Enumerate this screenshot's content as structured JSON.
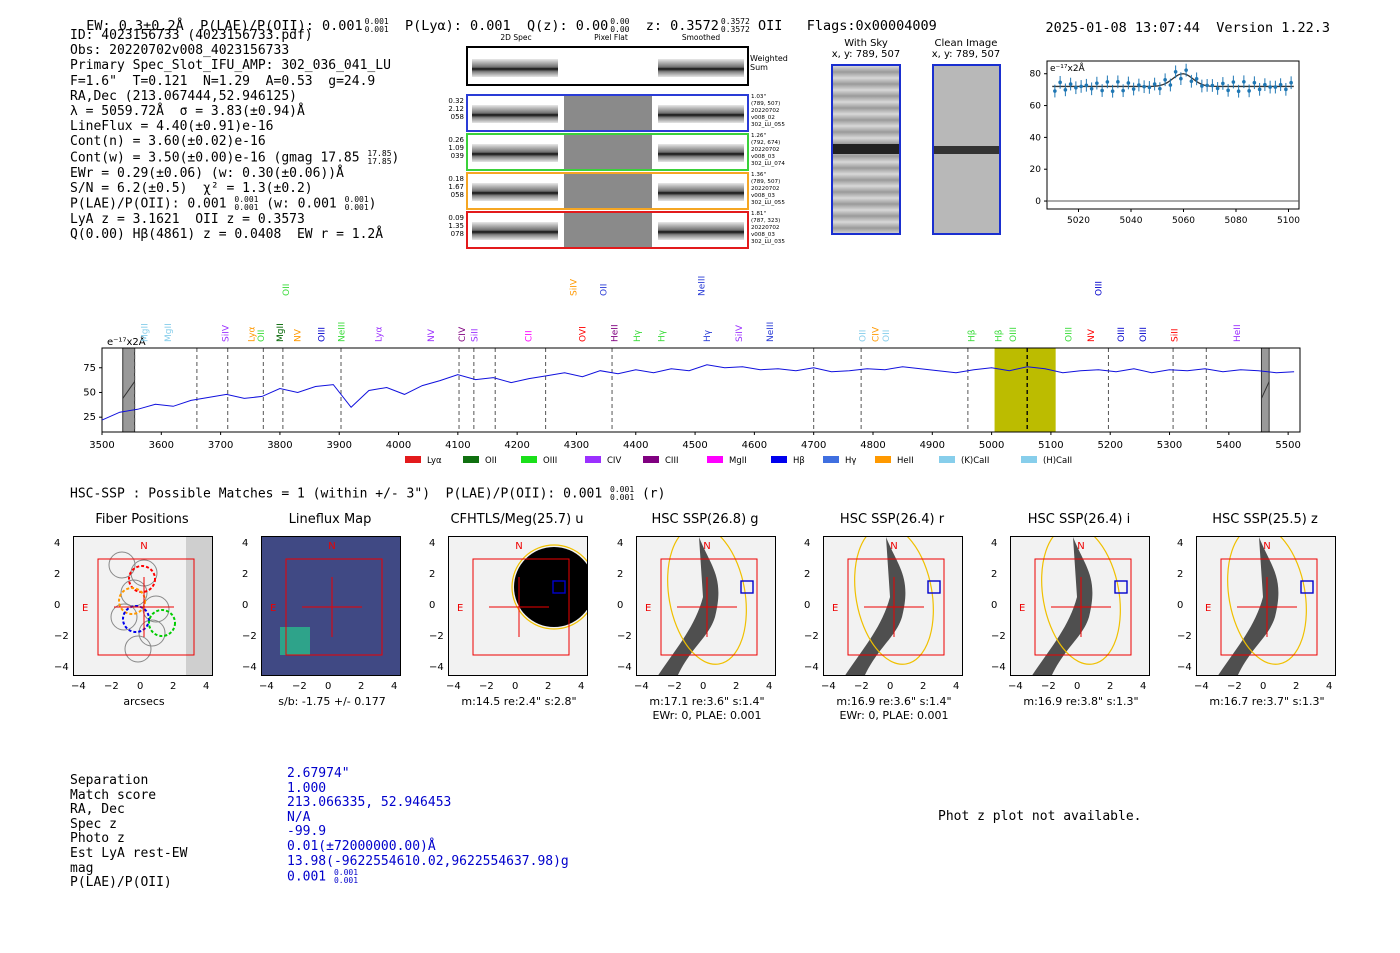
{
  "header": {
    "ew": "EW: 0.3±0.2Å",
    "plae_label": "P(LAE)/P(OII): 0.001",
    "plae_hi": "0.001",
    "plae_lo": "0.001",
    "plya": "P(Lyα): 0.001",
    "qz_label": "Q(z): 0.00",
    "qz_hi": "0.00",
    "qz_lo": "0.00",
    "z_label": "z: 0.3572",
    "z_hi": "0.3572",
    "z_lo": "0.3572",
    "z_line": "OII",
    "flags": "Flags:0x00004009",
    "timestamp": "2025-01-08 13:07:44",
    "version": "Version 1.22.3"
  },
  "info": {
    "id": "ID: 4023156733 (4023156733.pdf)",
    "obs": "Obs: 20220702v008_4023156733",
    "primary": "Primary Spec_Slot_IFU_AMP: 302_036_041_LU",
    "fwhm": "F=1.6\"  T=0.121  N=1.29  A=0.53  g=24.9",
    "radec": "RA,Dec (213.067444,52.946125)",
    "lambda": "λ = 5059.72Å  σ = 3.83(±0.94)Å",
    "lineflux": "LineFlux = 4.40(±0.91)e-16",
    "contn": "Cont(n) = 3.60(±0.02)e-16",
    "contw": "Cont(w) = 3.50(±0.00)e-16 (gmag 17.85",
    "contw_hi": "17.85",
    "contw_lo": "17.85",
    "ewr": "EWr = 0.29(±0.06) (w: 0.30(±0.06))Å",
    "sn": "S/N = 6.2(±0.5)  χ² = 1.3(±0.2)",
    "plae": "P(LAE)/P(OII): 0.001",
    "plae_hi": "0.001",
    "plae_lo": "0.001",
    "plae_w": "(w: 0.001",
    "plae_w_hi": "0.001",
    "plae_w_lo": "0.001",
    "lya": "LyA z = 3.1621  OII z = 0.3573",
    "hbeta": "Q(0.00) Hβ(4861) z = 0.0408  EW r = 1.2Å"
  },
  "cutouts": {
    "col_titles": [
      "2D Spec",
      "Pixel Flat",
      "Smoothed"
    ],
    "weighted_sum": "Weighted Sum",
    "rows": [
      {
        "left": [
          "0.32",
          "2.12",
          "058"
        ],
        "right": [
          "1.03\"",
          "(789, 507)",
          "20220702",
          "v008_02",
          "302_LU_055"
        ],
        "color": "#2a3cd6"
      },
      {
        "left": [
          "0.26",
          "1.09",
          "039"
        ],
        "right": [
          "1.26\"",
          "(792, 674)",
          "20220702",
          "v008_03",
          "302_LU_074"
        ],
        "color": "#3ad13a"
      },
      {
        "left": [
          "0.18",
          "1.67",
          "058"
        ],
        "right": [
          "1.36\"",
          "(789, 507)",
          "20220702",
          "v008_03",
          "302_LU_055"
        ],
        "color": "#f5a623"
      },
      {
        "left": [
          "0.09",
          "1.35",
          "078"
        ],
        "right": [
          "1.81\"",
          "(787, 323)",
          "20220702",
          "v008_03",
          "302_LU_035"
        ],
        "color": "#e31a1c"
      }
    ],
    "with_sky": "With Sky",
    "with_sky_xy": "x, y: 789, 507",
    "clean": "Clean Image",
    "clean_xy": "x, y: 789, 507"
  },
  "zoom_plot": {
    "unit_label": "e⁻¹⁷x2Å",
    "xticks": [
      "5020",
      "5040",
      "5060",
      "5080",
      "5100"
    ],
    "yticks": [
      "0",
      "20",
      "40",
      "60",
      "80"
    ]
  },
  "chart_data": {
    "type": "line",
    "title": "",
    "ylabel": "e⁻¹⁷x2Å",
    "xlim": [
      3500,
      5520
    ],
    "ylim": [
      10,
      95
    ],
    "xticks": [
      3500,
      3600,
      3700,
      3800,
      3900,
      4000,
      4100,
      4200,
      4300,
      4400,
      4500,
      4600,
      4700,
      4800,
      4900,
      5000,
      5100,
      5200,
      5300,
      5400,
      5500
    ],
    "yticks": [
      25,
      50,
      75
    ],
    "x": [
      3500,
      3530,
      3560,
      3590,
      3620,
      3650,
      3680,
      3710,
      3740,
      3770,
      3800,
      3830,
      3860,
      3890,
      3920,
      3950,
      3980,
      4010,
      4040,
      4070,
      4100,
      4130,
      4160,
      4190,
      4220,
      4250,
      4280,
      4310,
      4340,
      4370,
      4400,
      4430,
      4460,
      4490,
      4520,
      4550,
      4580,
      4610,
      4640,
      4670,
      4700,
      4730,
      4760,
      4790,
      4820,
      4850,
      4880,
      4910,
      4940,
      4970,
      5000,
      5030,
      5060,
      5090,
      5120,
      5150,
      5180,
      5210,
      5240,
      5270,
      5300,
      5330,
      5360,
      5390,
      5420,
      5450,
      5480,
      5510
    ],
    "values": [
      22,
      30,
      33,
      38,
      36,
      42,
      45,
      48,
      44,
      46,
      54,
      50,
      56,
      58,
      35,
      52,
      55,
      48,
      57,
      62,
      68,
      63,
      65,
      60,
      64,
      67,
      70,
      66,
      72,
      69,
      73,
      70,
      74,
      72,
      78,
      75,
      76,
      73,
      74,
      72,
      75,
      71,
      72,
      74,
      73,
      76,
      74,
      72,
      70,
      73,
      75,
      72,
      76,
      74,
      70,
      72,
      73,
      71,
      74,
      70,
      73,
      72,
      74,
      71,
      73,
      72,
      70,
      71
    ],
    "highlight_range": [
      5005,
      5108
    ],
    "masked_ranges": [
      [
        3535,
        3555
      ],
      [
        5455,
        5468
      ]
    ],
    "dashed_lines": [
      3555,
      3660,
      3712,
      3772,
      3805,
      3903,
      4102,
      4127,
      4163,
      4248,
      4360,
      4700,
      4780,
      4960,
      5060,
      5197,
      5306,
      5362
    ],
    "lines": [
      {
        "name": "MgII",
        "x": 3572,
        "color": "#87ceeb"
      },
      {
        "name": "MgII",
        "x": 3611,
        "color": "#87ceeb"
      },
      {
        "name": "SiIV",
        "x": 3708,
        "color": "#9b30ff"
      },
      {
        "name": "Lyα",
        "x": 3752,
        "color": "#ff9900"
      },
      {
        "name": "OII",
        "x": 3768,
        "color": "#3bdc3b"
      },
      {
        "name": "MgII",
        "x": 3800,
        "color": "#006400"
      },
      {
        "name": "NV",
        "x": 3830,
        "color": "#ff9900"
      },
      {
        "name": "OIII",
        "x": 3870,
        "color": "#0000cc"
      },
      {
        "name": "NeIII",
        "x": 3904,
        "color": "#3bdc3b"
      },
      {
        "name": "Lyα",
        "x": 3966,
        "color": "#9b30ff"
      },
      {
        "name": "NV",
        "x": 4055,
        "color": "#9b30ff"
      },
      {
        "name": "CIV",
        "x": 4107,
        "color": "#800080"
      },
      {
        "name": "SiII",
        "x": 4128,
        "color": "#9b30ff"
      },
      {
        "name": "CII",
        "x": 4219,
        "color": "#ff00ff"
      },
      {
        "name": "OVI",
        "x": 4310,
        "color": "#ff0000"
      },
      {
        "name": "HeII",
        "x": 4364,
        "color": "#800080"
      },
      {
        "name": "Hγ",
        "x": 4402,
        "color": "#3bdc3b"
      },
      {
        "name": "Hγ",
        "x": 4443,
        "color": "#3bdc3b"
      },
      {
        "name": "Hγ",
        "x": 4520,
        "color": "#2a3cd6"
      },
      {
        "name": "SiIV",
        "x": 4574,
        "color": "#9b30ff"
      },
      {
        "name": "NeIII",
        "x": 4626,
        "color": "#2a3cd6"
      },
      {
        "name": "OII",
        "x": 4782,
        "color": "#87ceeb"
      },
      {
        "name": "CIV",
        "x": 4804,
        "color": "#ff9900"
      },
      {
        "name": "OII",
        "x": 4822,
        "color": "#87ceeb"
      },
      {
        "name": "Hβ",
        "x": 4966,
        "color": "#3bdc3b"
      },
      {
        "name": "Hβ",
        "x": 5012,
        "color": "#3bdc3b"
      },
      {
        "name": "OIII",
        "x": 5036,
        "color": "#3bdc3b"
      },
      {
        "name": "OIII",
        "x": 5130,
        "color": "#3bdc3b"
      },
      {
        "name": "NV",
        "x": 5168,
        "color": "#ff0000"
      },
      {
        "name": "OIII",
        "x": 5218,
        "color": "#0000cc"
      },
      {
        "name": "OIII",
        "x": 5255,
        "color": "#0000cc"
      },
      {
        "name": "SiII",
        "x": 5308,
        "color": "#ff0000"
      },
      {
        "name": "HeII",
        "x": 5414,
        "color": "#9b30ff"
      }
    ],
    "top_lines": [
      {
        "name": "OII",
        "x": 3810,
        "color": "#3bdc3b"
      },
      {
        "name": "SiIV",
        "x": 4295,
        "color": "#ff9900"
      },
      {
        "name": "OII",
        "x": 4346,
        "color": "#2a3cd6"
      },
      {
        "name": "NeIII",
        "x": 4511,
        "color": "#2a3cd6"
      },
      {
        "name": "OIII",
        "x": 5180,
        "color": "#0000cc"
      }
    ],
    "legend": [
      {
        "name": "Lyα",
        "color": "#e31a1c"
      },
      {
        "name": "OII",
        "color": "#107010"
      },
      {
        "name": "OIII",
        "color": "#1ae01a"
      },
      {
        "name": "CIV",
        "color": "#9b30ff"
      },
      {
        "name": "CIII",
        "color": "#800080"
      },
      {
        "name": "MgII",
        "color": "#ff00ff"
      },
      {
        "name": "Hβ",
        "color": "#0000ee"
      },
      {
        "name": "Hγ",
        "color": "#3f6fe0"
      },
      {
        "name": "HeII",
        "color": "#ff9900"
      },
      {
        "name": "(K)CaII",
        "color": "#87ceeb"
      },
      {
        "name": "(H)CaII",
        "color": "#87ceeb"
      }
    ]
  },
  "hsc": {
    "heading": "HSC-SSP : Possible Matches = 1 (within +/- 3\")  P(LAE)/P(OII): 0.001",
    "heading_hi": "0.001",
    "heading_lo": "0.001",
    "heading_band": "(r)",
    "panels": [
      {
        "title": "Fiber Positions",
        "caption": "arcsecs",
        "caption2": ""
      },
      {
        "title": "Lineflux Map",
        "caption": "s/b: -1.75 +/- 0.177",
        "caption2": ""
      },
      {
        "title": "CFHTLS/Meg(25.7) u",
        "caption": "m:14.5  re:2.4\"  s:2.8\"",
        "caption2": ""
      },
      {
        "title": "HSC SSP(26.8) g",
        "caption": "m:17.1  re:3.6\"  s:1.4\"",
        "caption2": "EWr: 0, PLAE: 0.001"
      },
      {
        "title": "HSC SSP(26.4) r",
        "caption": "m:16.9  re:3.6\"  s:1.4\"",
        "caption2": "EWr: 0, PLAE: 0.001"
      },
      {
        "title": "HSC SSP(26.4) i",
        "caption": "m:16.9  re:3.8\"  s:1.3\"",
        "caption2": ""
      },
      {
        "title": "HSC SSP(25.5) z",
        "caption": "m:16.7  re:3.7\"  s:1.3\"",
        "caption2": ""
      }
    ],
    "axis_ticks": [
      "−4",
      "−2",
      "0",
      "2",
      "4"
    ],
    "compass_n": "N",
    "compass_e": "E"
  },
  "bottom": {
    "labels": [
      "Separation",
      "Match score",
      "RA, Dec",
      "Spec z",
      "Photo z",
      "Est LyA rest-EW",
      "mag",
      "P(LAE)/P(OII)"
    ],
    "values": [
      "2.67974\"",
      "1.000",
      "213.066335, 52.946453",
      "N/A",
      "-99.9",
      "0.01(±72000000.00)Å",
      "13.98(-9622554610.02,9622554637.98)g",
      "0.001"
    ],
    "plae_hi": "0.001",
    "plae_lo": "0.001",
    "photz_note": "Phot z plot not available."
  }
}
